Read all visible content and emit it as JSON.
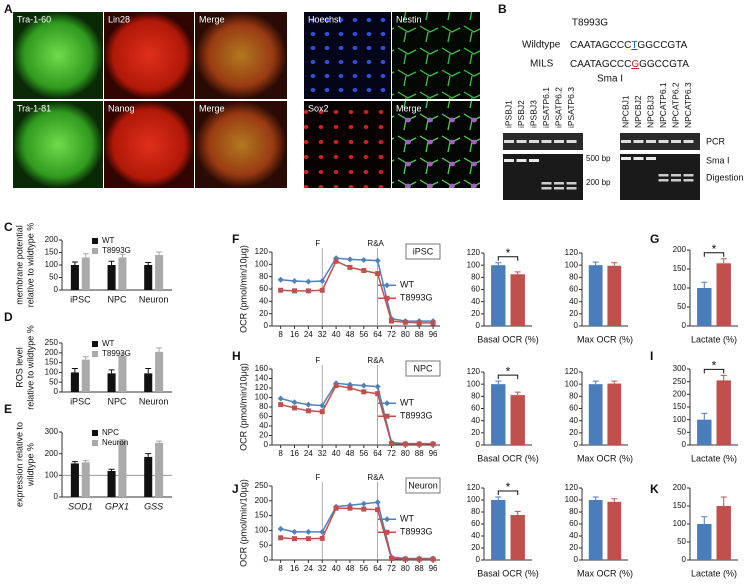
{
  "panel_a": {
    "letter": "A",
    "tiles": [
      "Tra-1-60",
      "Lin28",
      "Merge",
      "Hoechst",
      "Nestin",
      "Tra-1-81",
      "Nanog",
      "Merge",
      "Sox2",
      "Merge"
    ]
  },
  "panel_b": {
    "letter": "B",
    "mutation": "T8993G",
    "wildtype": {
      "label": "Wildtype",
      "seq_pre": "CAATAGCCC",
      "seq_base": "T",
      "seq_post": "GGCCGTA"
    },
    "mils": {
      "label": "MILS",
      "seq_pre": "CAATAGCCC",
      "seq_base": "G",
      "seq_post": "GGCCGTA"
    },
    "enzyme": "Sma I",
    "lanes_left": [
      "iPSBJ1",
      "iPSBJ2",
      "iPSBJ3",
      "iPSATP6.1",
      "iPSATP6.2",
      "iPSATP6.3"
    ],
    "lanes_right": [
      "NPCBJ1",
      "NPCBJ2",
      "NPCBJ3",
      "NPCATP6.1",
      "NPCATP6.2",
      "NPCATP6.3"
    ],
    "pcr": "PCR",
    "digestion": [
      "Sma I",
      "Digestion"
    ],
    "bp500": "500 bp",
    "bp200": "200 bp"
  },
  "chart_data": [
    {
      "type": "bar",
      "panel": "C",
      "ylabel": [
        "membrane potential",
        "relative to wildtype  %"
      ],
      "categories": [
        "iPSC",
        "NPC",
        "Neuron"
      ],
      "series": [
        {
          "name": "WT",
          "color": "#111111",
          "values": [
            100,
            100,
            100
          ],
          "errors": [
            12,
            15,
            10
          ]
        },
        {
          "name": "T8993G",
          "color": "#aaaaaa",
          "values": [
            130,
            130,
            140
          ],
          "errors": [
            15,
            13,
            12
          ]
        }
      ],
      "ylim": [
        0,
        200
      ],
      "yticks": [
        0,
        50,
        100,
        150,
        200
      ],
      "legend": "top-left"
    },
    {
      "type": "bar",
      "panel": "D",
      "ylabel": [
        "ROS level",
        "relative to wildtype  %"
      ],
      "categories": [
        "iPSC",
        "NPC",
        "Neuron"
      ],
      "series": [
        {
          "name": "WT",
          "color": "#111111",
          "values": [
            100,
            95,
            95
          ],
          "errors": [
            20,
            18,
            25
          ]
        },
        {
          "name": "T8993G",
          "color": "#aaaaaa",
          "values": [
            165,
            185,
            205
          ],
          "errors": [
            15,
            13,
            20
          ]
        }
      ],
      "ylim": [
        0,
        250
      ],
      "yticks": [
        0,
        50,
        100,
        150,
        200,
        250
      ],
      "legend": "top-left"
    },
    {
      "type": "bar",
      "panel": "E",
      "ylabel": [
        "expression relative to",
        "wildtype %"
      ],
      "categories": [
        "SOD1",
        "GPX1",
        "GSS"
      ],
      "italic_categories": true,
      "series": [
        {
          "name": "NPC",
          "color": "#111111",
          "values": [
            155,
            120,
            185
          ],
          "errors": [
            8,
            8,
            15
          ]
        },
        {
          "name": "Neuron",
          "color": "#aaaaaa",
          "values": [
            160,
            260,
            250
          ],
          "errors": [
            8,
            5,
            8
          ]
        }
      ],
      "ylim": [
        0,
        300
      ],
      "yticks": [
        0,
        100,
        200,
        300
      ],
      "refline": 100,
      "legend": "top-left"
    },
    {
      "type": "line",
      "panel": "F",
      "ylabel": "OCR (pmol/min/10μg)",
      "cell": "iPSC",
      "x": [
        8,
        16,
        24,
        32,
        40,
        48,
        56,
        64,
        72,
        80,
        88,
        96
      ],
      "series": [
        {
          "name": "WT",
          "color": "#4f81bd",
          "values": [
            75,
            73,
            72,
            73,
            110,
            108,
            107,
            106,
            12,
            8,
            8,
            8
          ]
        },
        {
          "name": "T8993G",
          "color": "#c0504d",
          "values": [
            58,
            57,
            57,
            58,
            105,
            95,
            90,
            85,
            8,
            6,
            5,
            5
          ]
        }
      ],
      "markers": [
        {
          "x": 32,
          "label": "F"
        },
        {
          "x": 64,
          "label": "R&A"
        }
      ],
      "xlim": [
        3,
        100
      ],
      "xticks": [
        8,
        16,
        24,
        32,
        40,
        48,
        56,
        64,
        72,
        80,
        88,
        96
      ],
      "ylim": [
        0,
        120
      ],
      "yticks": [
        0,
        20,
        40,
        60,
        80,
        100,
        120
      ]
    },
    {
      "type": "bar",
      "categories": [
        "Basal OCR (%)"
      ],
      "series": [
        {
          "name": "WT",
          "color": "#4a7ebb",
          "values": [
            100
          ],
          "errors": [
            4
          ]
        },
        {
          "name": "T8993G",
          "color": "#c0504d",
          "values": [
            85
          ],
          "errors": [
            4
          ]
        }
      ],
      "ylim": [
        0,
        120
      ],
      "yticks": [
        0,
        20,
        40,
        60,
        80,
        100,
        120
      ],
      "annotation": "*"
    },
    {
      "type": "bar",
      "categories": [
        "Max OCR (%)"
      ],
      "series": [
        {
          "name": "WT",
          "color": "#4a7ebb",
          "values": [
            100
          ],
          "errors": [
            5
          ]
        },
        {
          "name": "T8993G",
          "color": "#c0504d",
          "values": [
            99
          ],
          "errors": [
            5
          ]
        }
      ],
      "ylim": [
        0,
        120
      ],
      "yticks": [
        0,
        20,
        40,
        60,
        80,
        100,
        120
      ]
    },
    {
      "type": "bar",
      "panel": "G",
      "categories": [
        "Lactate (%)"
      ],
      "series": [
        {
          "name": "WT",
          "color": "#4a7ebb",
          "values": [
            100
          ],
          "errors": [
            15
          ]
        },
        {
          "name": "T8993G",
          "color": "#c0504d",
          "values": [
            165
          ],
          "errors": [
            12
          ]
        }
      ],
      "ylim": [
        0,
        200
      ],
      "yticks": [
        0,
        50,
        100,
        150,
        200
      ],
      "annotation": "*"
    },
    {
      "type": "line",
      "panel": "H",
      "ylabel": "OCR (pmol/min/10μg)",
      "cell": "NPC",
      "x": [
        8,
        16,
        24,
        32,
        40,
        48,
        56,
        64,
        72,
        80,
        88,
        96
      ],
      "series": [
        {
          "name": "WT",
          "color": "#4f81bd",
          "values": [
            98,
            90,
            85,
            83,
            130,
            127,
            125,
            123,
            5,
            3,
            3,
            3
          ]
        },
        {
          "name": "T8993G",
          "color": "#c0504d",
          "values": [
            85,
            78,
            72,
            70,
            125,
            120,
            112,
            108,
            3,
            2,
            2,
            2
          ]
        }
      ],
      "markers": [
        {
          "x": 32,
          "label": "F"
        },
        {
          "x": 64,
          "label": "R&A"
        }
      ],
      "xlim": [
        3,
        100
      ],
      "xticks": [
        8,
        16,
        24,
        32,
        40,
        48,
        56,
        64,
        72,
        80,
        88,
        96
      ],
      "ylim": [
        0,
        160
      ],
      "yticks": [
        0,
        20,
        40,
        60,
        80,
        100,
        120,
        140,
        160
      ]
    },
    {
      "type": "bar",
      "categories": [
        "Basal OCR (%)"
      ],
      "series": [
        {
          "name": "WT",
          "color": "#4a7ebb",
          "values": [
            100
          ],
          "errors": [
            5
          ]
        },
        {
          "name": "T8993G",
          "color": "#c0504d",
          "values": [
            82
          ],
          "errors": [
            5
          ]
        }
      ],
      "ylim": [
        0,
        120
      ],
      "yticks": [
        0,
        20,
        40,
        60,
        80,
        100,
        120
      ],
      "annotation": "*"
    },
    {
      "type": "bar",
      "categories": [
        "Max OCR (%)"
      ],
      "series": [
        {
          "name": "WT",
          "color": "#4a7ebb",
          "values": [
            100
          ],
          "errors": [
            5
          ]
        },
        {
          "name": "T8993G",
          "color": "#c0504d",
          "values": [
            101
          ],
          "errors": [
            4
          ]
        }
      ],
      "ylim": [
        0,
        120
      ],
      "yticks": [
        0,
        20,
        40,
        60,
        80,
        100,
        120
      ]
    },
    {
      "type": "bar",
      "panel": "I",
      "categories": [
        "Lactate (%)"
      ],
      "series": [
        {
          "name": "WT",
          "color": "#4a7ebb",
          "values": [
            100
          ],
          "errors": [
            25
          ]
        },
        {
          "name": "T8993G",
          "color": "#c0504d",
          "values": [
            255
          ],
          "errors": [
            20
          ]
        }
      ],
      "ylim": [
        0,
        300
      ],
      "yticks": [
        0,
        50,
        100,
        150,
        200,
        250,
        300
      ],
      "annotation": "*"
    },
    {
      "type": "line",
      "panel": "J",
      "ylabel": "OCR (pmol/min/10μg)",
      "cell": "Neuron",
      "x": [
        8,
        16,
        24,
        32,
        40,
        48,
        56,
        64,
        72,
        80,
        88,
        96
      ],
      "series": [
        {
          "name": "WT",
          "color": "#4f81bd",
          "values": [
            105,
            95,
            95,
            95,
            180,
            185,
            190,
            195,
            10,
            5,
            5,
            5
          ]
        },
        {
          "name": "T8993G",
          "color": "#c0504d",
          "values": [
            75,
            72,
            72,
            73,
            175,
            175,
            172,
            170,
            5,
            3,
            3,
            3
          ]
        }
      ],
      "markers": [
        {
          "x": 32,
          "label": "F"
        },
        {
          "x": 64,
          "label": "R&A"
        }
      ],
      "xlim": [
        3,
        100
      ],
      "xticks": [
        8,
        16,
        24,
        32,
        40,
        48,
        56,
        64,
        72,
        80,
        88,
        96
      ],
      "ylim": [
        0,
        250
      ],
      "yticks": [
        0,
        50,
        100,
        150,
        200,
        250
      ]
    },
    {
      "type": "bar",
      "categories": [
        "Basal OCR (%)"
      ],
      "series": [
        {
          "name": "WT",
          "color": "#4a7ebb",
          "values": [
            100
          ],
          "errors": [
            5
          ]
        },
        {
          "name": "T8993G",
          "color": "#c0504d",
          "values": [
            75
          ],
          "errors": [
            6
          ]
        }
      ],
      "ylim": [
        0,
        120
      ],
      "yticks": [
        0,
        20,
        40,
        60,
        80,
        100,
        120
      ],
      "annotation": "*"
    },
    {
      "type": "bar",
      "categories": [
        "Max OCR (%)"
      ],
      "series": [
        {
          "name": "WT",
          "color": "#4a7ebb",
          "values": [
            100
          ],
          "errors": [
            5
          ]
        },
        {
          "name": "T8993G",
          "color": "#c0504d",
          "values": [
            97
          ],
          "errors": [
            5
          ]
        }
      ],
      "ylim": [
        0,
        120
      ],
      "yticks": [
        0,
        20,
        40,
        60,
        80,
        100,
        120
      ]
    },
    {
      "type": "bar",
      "panel": "K",
      "categories": [
        "Lactate (%)"
      ],
      "series": [
        {
          "name": "WT",
          "color": "#4a7ebb",
          "values": [
            100
          ],
          "errors": [
            20
          ]
        },
        {
          "name": "T8993G",
          "color": "#c0504d",
          "values": [
            150
          ],
          "errors": [
            25
          ]
        }
      ],
      "ylim": [
        0,
        200
      ],
      "yticks": [
        0,
        50,
        100,
        150,
        200
      ]
    }
  ]
}
